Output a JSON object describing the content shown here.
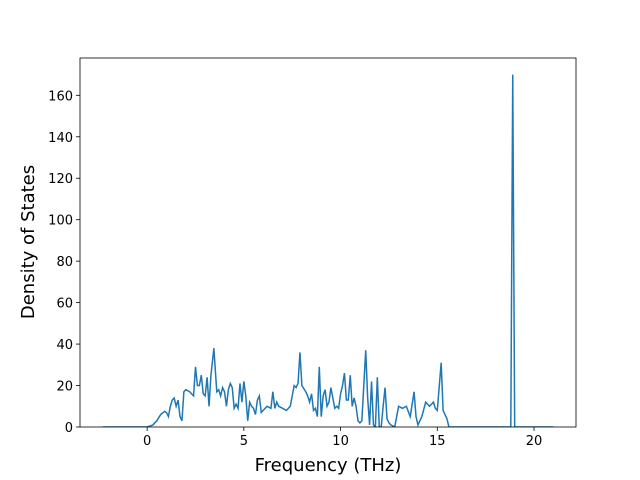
{
  "chart_data": {
    "type": "line",
    "x_label": "Frequency (THz)",
    "y_label": "Density of States",
    "xlim": [
      -3.47,
      22.17
    ],
    "ylim": [
      0,
      178
    ],
    "xticks": [
      0,
      5,
      10,
      15,
      20
    ],
    "yticks": [
      0,
      20,
      40,
      60,
      80,
      100,
      120,
      140,
      160
    ],
    "series": [
      {
        "color": "#1f77b4",
        "x": [
          -2.3,
          0,
          0.3,
          0.5,
          0.7,
          0.9,
          1.0,
          1.1,
          1.2,
          1.3,
          1.4,
          1.5,
          1.6,
          1.7,
          1.8,
          1.9,
          2.0,
          2.2,
          2.4,
          2.5,
          2.6,
          2.7,
          2.8,
          2.9,
          3.0,
          3.1,
          3.2,
          3.3,
          3.45,
          3.6,
          3.7,
          3.8,
          3.9,
          4.0,
          4.1,
          4.2,
          4.3,
          4.4,
          4.5,
          4.6,
          4.7,
          4.8,
          4.9,
          5.0,
          5.1,
          5.2,
          5.3,
          5.4,
          5.5,
          5.6,
          5.7,
          5.8,
          5.9,
          6.0,
          6.2,
          6.4,
          6.5,
          6.6,
          6.7,
          6.8,
          7.0,
          7.2,
          7.4,
          7.6,
          7.7,
          7.8,
          7.9,
          8.0,
          8.2,
          8.3,
          8.4,
          8.5,
          8.6,
          8.7,
          8.8,
          8.9,
          9.0,
          9.1,
          9.2,
          9.3,
          9.4,
          9.5,
          9.6,
          9.7,
          9.8,
          9.9,
          10.0,
          10.1,
          10.2,
          10.3,
          10.4,
          10.5,
          10.6,
          10.7,
          10.8,
          10.9,
          11.0,
          11.1,
          11.2,
          11.3,
          11.4,
          11.5,
          11.6,
          11.7,
          11.8,
          11.9,
          12.0,
          12.1,
          12.2,
          12.3,
          12.4,
          12.5,
          12.6,
          12.8,
          13.0,
          13.2,
          13.4,
          13.6,
          13.8,
          13.9,
          14.0,
          14.2,
          14.4,
          14.6,
          14.8,
          14.9,
          15.0,
          15.2,
          15.3,
          15.5,
          15.6,
          16.0,
          18.8,
          18.9,
          19.0,
          21.0
        ],
        "values": [
          0,
          0,
          1,
          3,
          6,
          7.5,
          7,
          5,
          10,
          13,
          14,
          10,
          13,
          5,
          3,
          17,
          18,
          17,
          15,
          29,
          20,
          20,
          25,
          16,
          15,
          24,
          10,
          25,
          38,
          17,
          18,
          15,
          19,
          17,
          10,
          18,
          21,
          19,
          9,
          11,
          9,
          21,
          12,
          22,
          15,
          3,
          12,
          10,
          9,
          6,
          13,
          15,
          7,
          8,
          10,
          9,
          17,
          9,
          12,
          10,
          9,
          8,
          10,
          20,
          19,
          21,
          36,
          20,
          17,
          15,
          12,
          16,
          8,
          9,
          5,
          29,
          5,
          15,
          18,
          10,
          12,
          19,
          14,
          9,
          10,
          9,
          16,
          20,
          26,
          13,
          13,
          25,
          10,
          14,
          10,
          3,
          2,
          3,
          20,
          37,
          14,
          1,
          22,
          1,
          0,
          24,
          0,
          0,
          10,
          19,
          4,
          2,
          1,
          0,
          10,
          9,
          10,
          5,
          17,
          5,
          1,
          5,
          12,
          10,
          12,
          9,
          8,
          31,
          8,
          4,
          0,
          0,
          0,
          170,
          0,
          0
        ]
      }
    ]
  }
}
